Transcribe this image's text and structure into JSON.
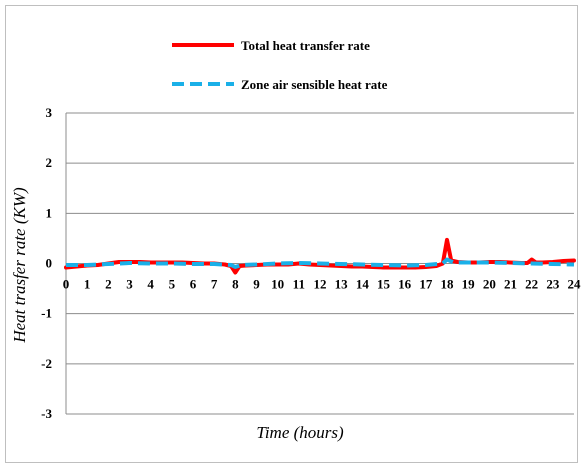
{
  "chart_data": {
    "type": "line",
    "title": "",
    "xlabel": "Time (hours)",
    "ylabel": "Heat trasfer rate (KW)",
    "ylim": [
      -3,
      3
    ],
    "xlim": [
      0,
      24
    ],
    "y_ticks": [
      "3",
      "2",
      "1",
      "0",
      "-1",
      "-2",
      "-3"
    ],
    "x_ticks": [
      "0",
      "1",
      "2",
      "3",
      "4",
      "5",
      "6",
      "7",
      "8",
      "9",
      "10",
      "11",
      "12",
      "13",
      "14",
      "15",
      "16",
      "17",
      "18",
      "19",
      "20",
      "21",
      "22",
      "23",
      "24"
    ],
    "grid": true,
    "legend_position": "top",
    "series": [
      {
        "name": "Total heat transfer rate",
        "color": "#ff0000",
        "style": "solid",
        "x": [
          0,
          0.5,
          1,
          1.5,
          2,
          2.5,
          3,
          3.5,
          4,
          4.5,
          5,
          5.5,
          6,
          6.5,
          7,
          7.5,
          7.8,
          8,
          8.2,
          8.5,
          9,
          9.5,
          10,
          10.5,
          11,
          11.5,
          12,
          12.5,
          13,
          13.5,
          14,
          14.5,
          15,
          15.5,
          16,
          16.5,
          17,
          17.5,
          17.8,
          18,
          18.2,
          18.5,
          19,
          19.5,
          20,
          20.5,
          21,
          21.5,
          21.8,
          22,
          22.2,
          22.5,
          23,
          23.5,
          24
        ],
        "y": [
          -0.08,
          -0.06,
          -0.04,
          -0.03,
          0,
          0.03,
          0.03,
          0.03,
          0.02,
          0.02,
          0.02,
          0.02,
          0.01,
          0,
          0,
          -0.02,
          -0.05,
          -0.18,
          -0.05,
          -0.04,
          -0.03,
          -0.02,
          -0.02,
          -0.02,
          0,
          -0.02,
          -0.03,
          -0.04,
          -0.05,
          -0.06,
          -0.06,
          -0.07,
          -0.08,
          -0.08,
          -0.08,
          -0.08,
          -0.07,
          -0.05,
          0,
          0.47,
          0.06,
          0.03,
          0.02,
          0.02,
          0.03,
          0.03,
          0.02,
          0.01,
          0.01,
          0.08,
          0.02,
          0.02,
          0.03,
          0.05,
          0.06
        ]
      },
      {
        "name": "Zone air sensible heat rate",
        "color": "#1ab0e8",
        "style": "dashed",
        "x": [
          0,
          1,
          2,
          3,
          4,
          5,
          6,
          7,
          7.8,
          8,
          8.3,
          9,
          10,
          11,
          12,
          13,
          14,
          15,
          16,
          17,
          17.8,
          18,
          18.3,
          19,
          20,
          21,
          22,
          23,
          24
        ],
        "y": [
          -0.03,
          -0.03,
          -0.01,
          0.01,
          0,
          0,
          -0.01,
          -0.01,
          -0.03,
          -0.07,
          -0.03,
          -0.02,
          0,
          0.01,
          0,
          -0.01,
          -0.02,
          -0.03,
          -0.04,
          -0.03,
          0,
          0.08,
          0.02,
          0.02,
          0.02,
          0.01,
          0,
          -0.01,
          -0.02
        ]
      }
    ]
  }
}
